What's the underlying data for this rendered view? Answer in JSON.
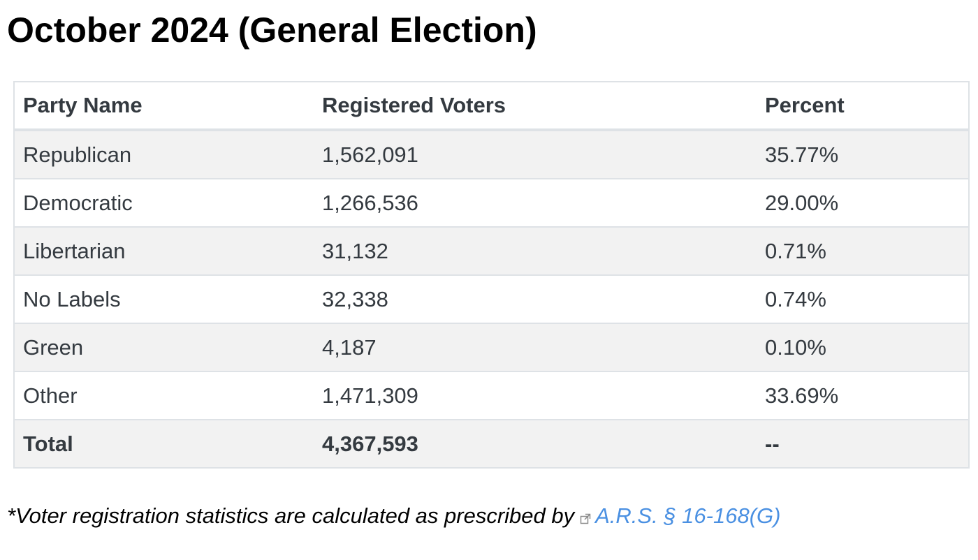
{
  "page": {
    "title": "October 2024 (General Election)"
  },
  "table": {
    "headers": [
      "Party Name",
      "Registered Voters",
      "Percent"
    ],
    "rows": [
      {
        "party": "Republican",
        "voters": "1,562,091",
        "percent": "35.77%"
      },
      {
        "party": "Democratic",
        "voters": "1,266,536",
        "percent": "29.00%"
      },
      {
        "party": "Libertarian",
        "voters": "31,132",
        "percent": "0.71%"
      },
      {
        "party": "No Labels",
        "voters": "32,338",
        "percent": "0.74%"
      },
      {
        "party": "Green",
        "voters": "4,187",
        "percent": "0.10%"
      },
      {
        "party": "Other",
        "voters": "1,471,309",
        "percent": "33.69%"
      }
    ],
    "total": {
      "label": "Total",
      "voters": "4,367,593",
      "percent": "--"
    }
  },
  "footnote": {
    "text": "*Voter registration statistics are calculated as prescribed by",
    "link_label": "A.R.S. § 16-168(G)",
    "link_icon": "external-link-icon",
    "link_color": "#4a90e2"
  }
}
